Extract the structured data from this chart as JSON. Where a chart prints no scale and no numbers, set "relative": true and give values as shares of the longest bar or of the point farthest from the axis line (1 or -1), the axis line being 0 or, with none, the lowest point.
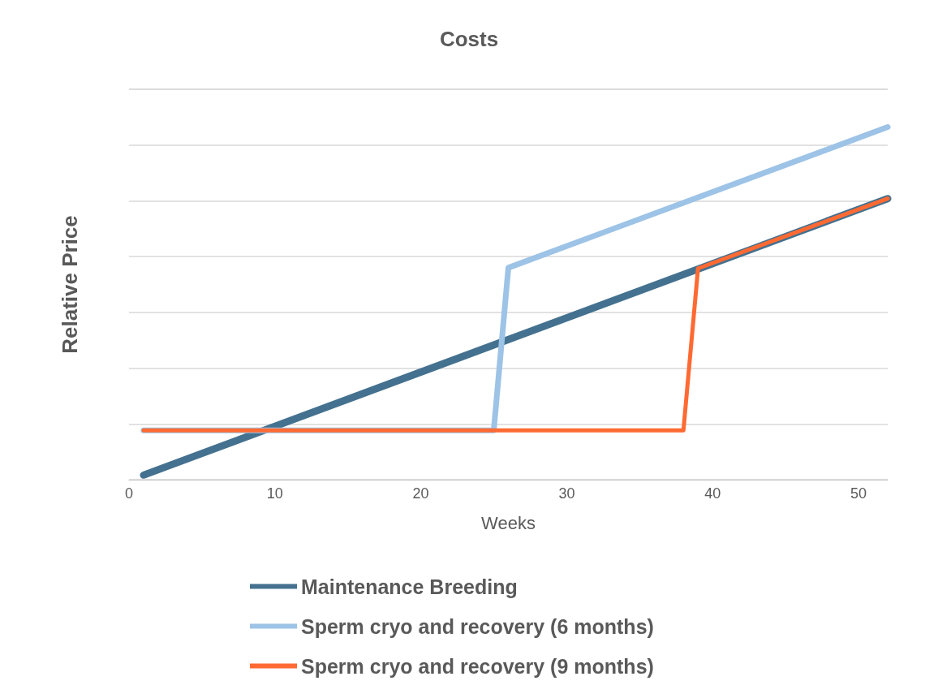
{
  "chart_data": {
    "type": "line",
    "title": "Costs",
    "xlabel": "Weeks",
    "ylabel": "Relative Price",
    "relative": true,
    "xlim": [
      0,
      52
    ],
    "xticks": [
      0,
      10,
      20,
      30,
      40,
      50
    ],
    "grid": "y",
    "legend": "bottom",
    "marker": "none",
    "line_style": "solid",
    "tick_labels": "x",
    "series": [
      {
        "name": "Maintenance Breeding",
        "color": "#44718f",
        "x": [
          1,
          52
        ],
        "values": [
          0.013,
          0.797
        ]
      },
      {
        "name": "Sperm cryo and recovery (6 months)",
        "color": "#9dc3e6",
        "x": [
          1,
          25,
          26,
          52
        ],
        "values": [
          0.14,
          0.14,
          0.601,
          1
        ]
      },
      {
        "name": "Sperm cryo and recovery (9 months)",
        "color": "#ff6a33",
        "x": [
          1,
          38,
          39,
          52
        ],
        "values": [
          0.14,
          0.14,
          0.599,
          0.797
        ]
      }
    ]
  }
}
